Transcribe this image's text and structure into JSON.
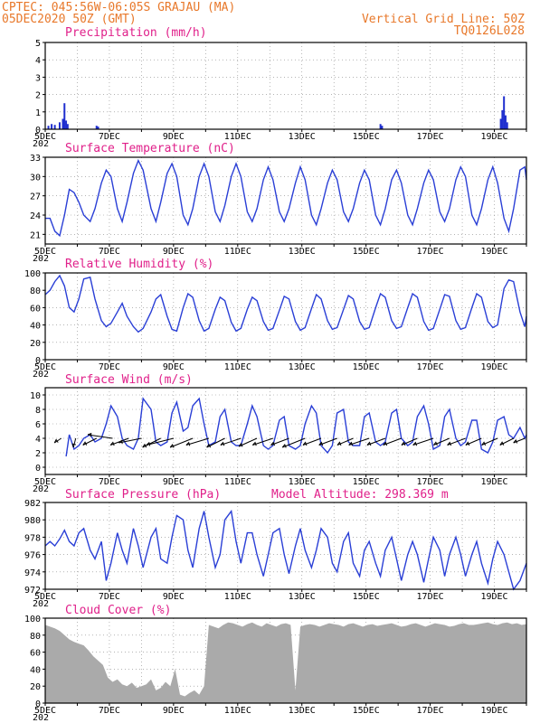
{
  "header": {
    "line1": "CPTEC:   045:56W-06:05S   GRAJAU (MA)",
    "line2": "05DEC2020 50Z (GMT)",
    "right1": "Vertical Grid Line: 50Z",
    "right2": "TQ0126L028"
  },
  "colors": {
    "header": "#e8782a",
    "title": "#e0208a",
    "line": "#2a3fd6",
    "bar": "#1f2fcf",
    "cloud": "#aaaaaa",
    "arrow": "#000000"
  },
  "x_axis": {
    "days": [
      5,
      6,
      7,
      8,
      9,
      10,
      11,
      12,
      13,
      14,
      15,
      16,
      17,
      18,
      19,
      20
    ],
    "tick_labels": [
      "5DEC",
      "7DEC",
      "9DEC",
      "11DEC",
      "13DEC",
      "15DEC",
      "17DEC",
      "19DEC"
    ],
    "year_fragment": "202"
  },
  "chart_data": [
    {
      "type": "bar",
      "title": "Precipitation (mm/h)",
      "ylim": [
        0,
        5
      ],
      "yticks": [
        0,
        1,
        2,
        3,
        4,
        5
      ],
      "x": [
        5.1,
        5.2,
        5.3,
        5.45,
        5.55,
        5.6,
        5.65,
        5.7,
        6.6,
        6.65,
        15.45,
        15.5,
        19.2,
        19.25,
        19.3,
        19.35,
        19.4
      ],
      "values": [
        0.2,
        0.3,
        0.25,
        0.4,
        0.6,
        1.5,
        0.5,
        0.3,
        0.2,
        0.15,
        0.3,
        0.2,
        0.6,
        1.1,
        1.9,
        0.8,
        0.4
      ]
    },
    {
      "type": "line",
      "title": "Surface Temperature (nC)",
      "ylim": [
        19.5,
        33
      ],
      "yticks": [
        21,
        24,
        27,
        30,
        33
      ],
      "x": [
        5.0,
        5.15,
        5.3,
        5.45,
        5.6,
        5.75,
        5.9,
        6.05,
        6.2,
        6.4,
        6.55,
        6.75,
        6.9,
        7.05,
        7.25,
        7.4,
        7.55,
        7.75,
        7.9,
        8.05,
        8.3,
        8.45,
        8.6,
        8.8,
        8.95,
        9.1,
        9.3,
        9.45,
        9.6,
        9.8,
        9.95,
        10.1,
        10.3,
        10.45,
        10.6,
        10.8,
        10.95,
        11.1,
        11.3,
        11.45,
        11.6,
        11.8,
        11.95,
        12.1,
        12.3,
        12.45,
        12.6,
        12.8,
        12.95,
        13.1,
        13.3,
        13.45,
        13.6,
        13.8,
        13.95,
        14.1,
        14.3,
        14.45,
        14.6,
        14.8,
        14.95,
        15.1,
        15.3,
        15.45,
        15.6,
        15.8,
        15.95,
        16.1,
        16.3,
        16.45,
        16.6,
        16.8,
        16.95,
        17.1,
        17.3,
        17.45,
        17.6,
        17.8,
        17.95,
        18.1,
        18.3,
        18.45,
        18.6,
        18.8,
        18.95,
        19.1,
        19.3,
        19.45,
        19.6,
        19.8,
        19.95,
        20.0
      ],
      "values": [
        23.5,
        23.5,
        21.5,
        20.8,
        24,
        28,
        27.5,
        26,
        24,
        23,
        25,
        29,
        31,
        30,
        25,
        23,
        26,
        30.5,
        32.5,
        31,
        25,
        23,
        26,
        30.5,
        32,
        30,
        24,
        22.5,
        25,
        30,
        32,
        30,
        24.5,
        23,
        25.5,
        30,
        32,
        30,
        24.5,
        23,
        25,
        29.5,
        31.5,
        29.5,
        24.5,
        23,
        25,
        29,
        31.5,
        29.5,
        24,
        22.5,
        25,
        29,
        31,
        29.5,
        24.5,
        23,
        25,
        29,
        31,
        29.5,
        24,
        22.5,
        25,
        29.5,
        31,
        29,
        24,
        22.5,
        25,
        29,
        31,
        29.5,
        24.5,
        23,
        25,
        29.5,
        31.5,
        30,
        24,
        22.5,
        25,
        29.5,
        31.5,
        29,
        23.5,
        21.5,
        25,
        31,
        31.5,
        29.5
      ],
      "xlabel": "",
      "ylabel": ""
    },
    {
      "type": "line",
      "title": "Relative Humidity (%)",
      "ylim": [
        0,
        100
      ],
      "yticks": [
        0,
        20,
        40,
        60,
        80,
        100
      ],
      "x": [
        5.0,
        5.15,
        5.3,
        5.45,
        5.6,
        5.75,
        5.9,
        6.05,
        6.2,
        6.4,
        6.55,
        6.75,
        6.9,
        7.05,
        7.25,
        7.4,
        7.55,
        7.75,
        7.9,
        8.05,
        8.3,
        8.45,
        8.6,
        8.8,
        8.95,
        9.1,
        9.3,
        9.45,
        9.6,
        9.8,
        9.95,
        10.1,
        10.3,
        10.45,
        10.6,
        10.8,
        10.95,
        11.1,
        11.3,
        11.45,
        11.6,
        11.8,
        11.95,
        12.1,
        12.3,
        12.45,
        12.6,
        12.8,
        12.95,
        13.1,
        13.3,
        13.45,
        13.6,
        13.8,
        13.95,
        14.1,
        14.3,
        14.45,
        14.6,
        14.8,
        14.95,
        15.1,
        15.3,
        15.45,
        15.6,
        15.8,
        15.95,
        16.1,
        16.3,
        16.45,
        16.6,
        16.8,
        16.95,
        17.1,
        17.3,
        17.45,
        17.6,
        17.8,
        17.95,
        18.1,
        18.3,
        18.45,
        18.6,
        18.8,
        18.95,
        19.1,
        19.3,
        19.45,
        19.6,
        19.8,
        19.95,
        20.0
      ],
      "values": [
        75,
        80,
        90,
        97,
        85,
        60,
        55,
        70,
        93,
        95,
        70,
        45,
        38,
        42,
        55,
        65,
        50,
        38,
        32,
        36,
        55,
        70,
        75,
        50,
        35,
        33,
        60,
        76,
        72,
        45,
        33,
        36,
        58,
        72,
        68,
        43,
        33,
        36,
        58,
        72,
        68,
        44,
        34,
        36,
        57,
        73,
        70,
        44,
        34,
        37,
        59,
        75,
        70,
        45,
        35,
        37,
        58,
        74,
        70,
        44,
        35,
        37,
        60,
        76,
        72,
        45,
        36,
        38,
        60,
        76,
        72,
        44,
        34,
        36,
        58,
        75,
        73,
        45,
        35,
        37,
        60,
        76,
        72,
        44,
        37,
        40,
        82,
        92,
        90,
        55,
        38,
        50
      ],
      "xlabel": "",
      "ylabel": ""
    },
    {
      "type": "line",
      "title": "Surface Wind (m/s)",
      "ylim": [
        -1,
        11
      ],
      "yticks": [
        0,
        2,
        4,
        6,
        8,
        10
      ],
      "x": [
        5.65,
        5.75,
        5.9,
        6.05,
        6.2,
        6.4,
        6.55,
        6.75,
        6.9,
        7.05,
        7.25,
        7.4,
        7.55,
        7.75,
        7.9,
        8.05,
        8.3,
        8.45,
        8.6,
        8.8,
        8.95,
        9.1,
        9.3,
        9.45,
        9.6,
        9.8,
        9.95,
        10.1,
        10.3,
        10.45,
        10.6,
        10.8,
        10.95,
        11.1,
        11.3,
        11.45,
        11.6,
        11.8,
        11.95,
        12.1,
        12.3,
        12.45,
        12.6,
        12.8,
        12.95,
        13.1,
        13.3,
        13.45,
        13.6,
        13.8,
        13.95,
        14.1,
        14.3,
        14.45,
        14.6,
        14.8,
        14.95,
        15.1,
        15.3,
        15.45,
        15.6,
        15.8,
        15.95,
        16.1,
        16.3,
        16.45,
        16.6,
        16.8,
        16.95,
        17.1,
        17.3,
        17.45,
        17.6,
        17.8,
        17.95,
        18.1,
        18.3,
        18.45,
        18.6,
        18.8,
        18.95,
        19.1,
        19.3,
        19.45,
        19.6,
        19.8,
        19.95,
        20.0
      ],
      "values": [
        1.5,
        4.5,
        2.5,
        3,
        4,
        4.5,
        3.5,
        4,
        6,
        8.5,
        7,
        4,
        3,
        2.5,
        4,
        9.5,
        8,
        3.5,
        3,
        3.5,
        7.5,
        9,
        5,
        5.5,
        8.5,
        9.5,
        6,
        3,
        3.5,
        7,
        8,
        3.5,
        3,
        3,
        6,
        8.5,
        7,
        3,
        2.5,
        3,
        6.5,
        7,
        3,
        2.5,
        3,
        6,
        8.5,
        7.5,
        3,
        2,
        3,
        7.5,
        8,
        3.5,
        3,
        3,
        7,
        7.5,
        3.5,
        3,
        3.5,
        7.5,
        8,
        4,
        3,
        3.5,
        7,
        8.5,
        6,
        2.5,
        3,
        7,
        8,
        4,
        3,
        3.5,
        6.5,
        6.5,
        2.5,
        2,
        3.5,
        6.5,
        7,
        4.5,
        4,
        5.5,
        4,
        4.5
      ],
      "arrows": {
        "x": [
          5.5,
          5.95,
          6.6,
          7.1,
          7.6,
          8.0,
          8.6,
          9.0,
          9.6,
          10.1,
          10.6,
          11.1,
          11.6,
          12.1,
          12.6,
          13.1,
          13.6,
          14.1,
          14.6,
          15.1,
          15.6,
          16.1,
          16.6,
          17.1,
          17.6,
          18.1,
          18.6,
          19.1,
          19.6,
          19.95
        ],
        "u": [
          -1.5,
          -0.5,
          -3,
          -5.5,
          -4,
          -5,
          -4,
          -6,
          -5,
          -5,
          -4,
          -4.5,
          -4,
          -4.5,
          -4,
          -5,
          -4,
          -4,
          -3.5,
          -4.5,
          -4,
          -4,
          -3.5,
          -4.5,
          -3.5,
          -4,
          -3.5,
          -3.5,
          -3,
          -2.5
        ],
        "v": [
          -1,
          -2,
          -1.5,
          0.8,
          -1.5,
          -1,
          -2,
          -1.5,
          -2,
          -1.5,
          -2,
          -1.5,
          -1.8,
          -1.5,
          -1.5,
          -2,
          -1.5,
          -1.5,
          -1.5,
          -1.5,
          -1.5,
          -1.5,
          -1.5,
          -1.5,
          -1.5,
          -1.5,
          -1.5,
          -1.5,
          -1.5,
          -1
        ]
      },
      "xlabel": "",
      "ylabel": ""
    },
    {
      "type": "line",
      "title": "Surface Pressure (hPa)",
      "ylim": [
        972,
        982
      ],
      "yticks": [
        972,
        974,
        976,
        978,
        980,
        982
      ],
      "annotation": "Model Altitude: 298.369 m",
      "x": [
        5.0,
        5.15,
        5.3,
        5.45,
        5.6,
        5.75,
        5.9,
        6.05,
        6.2,
        6.4,
        6.55,
        6.75,
        6.9,
        7.05,
        7.25,
        7.4,
        7.55,
        7.75,
        7.9,
        8.05,
        8.3,
        8.45,
        8.6,
        8.8,
        8.95,
        9.1,
        9.3,
        9.45,
        9.6,
        9.8,
        9.95,
        10.1,
        10.3,
        10.45,
        10.6,
        10.8,
        10.95,
        11.1,
        11.3,
        11.45,
        11.6,
        11.8,
        11.95,
        12.1,
        12.3,
        12.45,
        12.6,
        12.8,
        12.95,
        13.1,
        13.3,
        13.45,
        13.6,
        13.8,
        13.95,
        14.1,
        14.3,
        14.45,
        14.6,
        14.8,
        14.95,
        15.1,
        15.3,
        15.45,
        15.6,
        15.8,
        15.95,
        16.1,
        16.3,
        16.45,
        16.6,
        16.8,
        16.95,
        17.1,
        17.3,
        17.45,
        17.6,
        17.8,
        17.95,
        18.1,
        18.3,
        18.45,
        18.6,
        18.8,
        18.95,
        19.1,
        19.3,
        19.45,
        19.6,
        19.8,
        19.95,
        20.0
      ],
      "values": [
        977,
        977.5,
        977,
        977.8,
        978.8,
        977.5,
        977,
        978.5,
        979,
        976.5,
        975.5,
        977.5,
        973,
        975,
        978.5,
        976.5,
        975,
        979,
        977,
        974.5,
        978,
        979,
        975.5,
        975,
        978,
        980.5,
        980,
        976.5,
        974.5,
        979,
        981,
        978,
        974.5,
        976,
        980,
        981,
        977.5,
        975,
        978.5,
        978.5,
        976,
        973.5,
        976,
        978.5,
        979,
        976,
        973.8,
        977,
        979,
        976.5,
        974.5,
        976.5,
        979,
        978,
        975,
        974,
        977.5,
        978.5,
        975,
        973.5,
        976.5,
        977.5,
        975,
        973.5,
        976.5,
        978,
        975.5,
        973,
        976,
        977.5,
        976,
        972.8,
        975.5,
        978,
        976.5,
        973.5,
        976,
        978,
        976,
        973.5,
        976,
        977.5,
        975,
        972.7,
        975.5,
        977.5,
        976,
        974,
        972,
        973,
        974.5,
        975
      ],
      "xlabel": "",
      "ylabel": ""
    },
    {
      "type": "area",
      "title": "Cloud Cover (%)",
      "ylim": [
        0,
        100
      ],
      "yticks": [
        0,
        20,
        40,
        60,
        80,
        100
      ],
      "x": [
        5.0,
        5.15,
        5.3,
        5.45,
        5.6,
        5.75,
        5.9,
        6.05,
        6.2,
        6.35,
        6.5,
        6.65,
        6.8,
        6.95,
        7.1,
        7.25,
        7.4,
        7.55,
        7.7,
        7.85,
        8.0,
        8.15,
        8.3,
        8.45,
        8.6,
        8.75,
        8.9,
        9.05,
        9.2,
        9.35,
        9.5,
        9.65,
        9.8,
        9.95,
        10.1,
        10.25,
        10.4,
        10.55,
        10.7,
        10.85,
        11.0,
        11.15,
        11.3,
        11.45,
        11.6,
        11.75,
        11.9,
        12.05,
        12.2,
        12.35,
        12.5,
        12.65,
        12.8,
        12.95,
        13.1,
        13.25,
        13.4,
        13.55,
        13.7,
        13.85,
        14.0,
        14.15,
        14.3,
        14.45,
        14.6,
        14.75,
        14.9,
        15.05,
        15.2,
        15.35,
        15.5,
        15.65,
        15.8,
        15.95,
        16.1,
        16.25,
        16.4,
        16.55,
        16.7,
        16.85,
        17.0,
        17.15,
        17.3,
        17.45,
        17.6,
        17.75,
        17.9,
        18.05,
        18.2,
        18.35,
        18.5,
        18.65,
        18.8,
        18.95,
        19.1,
        19.25,
        19.4,
        19.55,
        19.7,
        19.85,
        20.0
      ],
      "values": [
        92,
        90,
        88,
        85,
        80,
        75,
        72,
        70,
        68,
        62,
        55,
        50,
        45,
        30,
        25,
        28,
        22,
        20,
        24,
        18,
        20,
        22,
        28,
        15,
        18,
        25,
        20,
        40,
        10,
        8,
        12,
        15,
        10,
        20,
        92,
        90,
        88,
        92,
        95,
        94,
        92,
        90,
        93,
        95,
        92,
        90,
        94,
        92,
        90,
        93,
        94,
        92,
        15,
        90,
        92,
        93,
        92,
        90,
        92,
        94,
        93,
        92,
        90,
        93,
        94,
        92,
        90,
        92,
        93,
        91,
        92,
        93,
        94,
        92,
        90,
        91,
        93,
        94,
        92,
        90,
        92,
        94,
        93,
        92,
        90,
        91,
        93,
        94,
        92,
        92,
        93,
        94,
        95,
        93,
        92,
        94,
        95,
        93,
        94,
        92,
        93
      ],
      "xlabel": "",
      "ylabel": ""
    }
  ]
}
